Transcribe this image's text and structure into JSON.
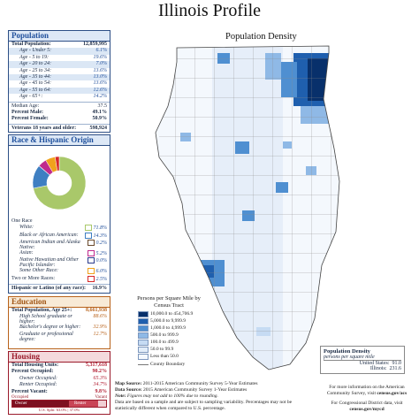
{
  "title": "Illinois Profile",
  "population": {
    "header": "Population",
    "total_label": "Total Population:",
    "total_value": "12,859,995",
    "ages": [
      {
        "label": "Age - Under 5:",
        "value": "6.1%"
      },
      {
        "label": "Age - 5 to 19:",
        "value": "19.6%"
      },
      {
        "label": "Age - 20 to 24:",
        "value": "7.0%"
      },
      {
        "label": "Age - 25 to 34:",
        "value": "13.6%"
      },
      {
        "label": "Age - 35 to 44:",
        "value": "13.0%"
      },
      {
        "label": "Age - 45 to 54:",
        "value": "13.6%"
      },
      {
        "label": "Age - 55 to 64:",
        "value": "12.6%"
      },
      {
        "label": "Age - 65+:",
        "value": "14.2%"
      }
    ],
    "median_label": "Median Age:",
    "median_value": "37.5",
    "male_label": "Percent Male:",
    "male_value": "49.1%",
    "female_label": "Percent Female:",
    "female_value": "50.9%",
    "veterans_label": "Veterans 18 years and older:",
    "veterans_value": "598,924"
  },
  "race": {
    "header": "Race & Hispanic Origin",
    "one_race_label": "One Race",
    "items": [
      {
        "label": "White:",
        "value": "71.8%",
        "color": "#a9c86a"
      },
      {
        "label": "Black or African American:",
        "value": "14.3%",
        "color": "#3f7fc2"
      },
      {
        "label": "American Indian and Alaska Native:",
        "value": "0.2%",
        "color": "#6a4a2c"
      },
      {
        "label": "Asian:",
        "value": "5.2%",
        "color": "#c02a8d"
      },
      {
        "label": "Native Hawaiian and Other Pacific Islander:",
        "value": "0.0%",
        "color": "#2a3a8c"
      },
      {
        "label": "Some Other Race:",
        "value": "6.0%",
        "color": "#f0a21c"
      }
    ],
    "two_more_label": "Two or More Races:",
    "two_more_value": "2.5%",
    "two_more_color": "#d62728",
    "hispanic_label": "Hispanic or Latino (of any race):",
    "hispanic_value": "16.9%"
  },
  "education": {
    "header": "Education",
    "total_label": "Total Population, Age 25+:",
    "total_value": "8,661,938",
    "items": [
      {
        "label": "High School graduate or higher:",
        "value": "88.6%"
      },
      {
        "label": "Bachelor's degree or higher:",
        "value": "32.9%"
      },
      {
        "label": "Graduate or professional degree:",
        "value": "12.7%"
      }
    ]
  },
  "housing": {
    "header": "Housing",
    "units_label": "Total Housing Units:",
    "units_value": "5,317,618",
    "occupied_label": "Percent Occupied:",
    "occupied_value": "90.2%",
    "owner_label": "Owner Occupied:",
    "owner_value": "65.3%",
    "renter_label": "Renter Occupied:",
    "renter_value": "34.7%",
    "vacant_label": "Percent Vacant:",
    "vacant_value": "9.8%",
    "bar_occupied": "Occupied",
    "bar_vacant": "Vacant",
    "bar_owner": "Owner",
    "bar_renter": "Renter",
    "split": "U.S. Split: 63.0% | 37.0%",
    "occupied_share": 0.902,
    "owner_share": 0.653
  },
  "map": {
    "title": "Population Density",
    "legend_title": "Persons per Square Mile by Census Tract",
    "classes": [
      {
        "label": "10,000.0 to 454,706.9",
        "color": "#08306b"
      },
      {
        "label": "5,000.0 to 9,999.9",
        "color": "#1f5fae"
      },
      {
        "label": "1,000.0 to 4,999.9",
        "color": "#4f8fd1"
      },
      {
        "label": "500.0 to 999.9",
        "color": "#8fb9e6"
      },
      {
        "label": "100.0 to 499.9",
        "color": "#c6dbf3"
      },
      {
        "label": "50.0 to 99.9",
        "color": "#e2edf9"
      },
      {
        "label": "Less than 50.0",
        "color": "#f5f9fe"
      }
    ],
    "county_boundary": "County Boundary",
    "box_title": "Population Density",
    "box_subtitle": "persons per square mile",
    "us_label": "United States:",
    "us_value": "91.0",
    "il_label": "Illinois:",
    "il_value": "231.6"
  },
  "sources": {
    "map_source_label": "Map Source:",
    "map_source": "2011-2015 American Community Survey 5-Year Estimates",
    "data_source_label": "Data Source:",
    "data_source": "2015 American Community Survey 1-Year Estimates",
    "note_label": "Note:",
    "note": "Figures may not add to 100% due to rounding.",
    "sample_note": "Data are based on a sample and are subject to sampling variability. Percentages may not be statistically different when compared to U.S. percentage."
  },
  "more_info": {
    "line1": "For more information on the American Community Survey, visit",
    "link1": "census.gov/acs",
    "line2": "For Congressional District data, visit",
    "link2": "census.gov/mycd"
  }
}
